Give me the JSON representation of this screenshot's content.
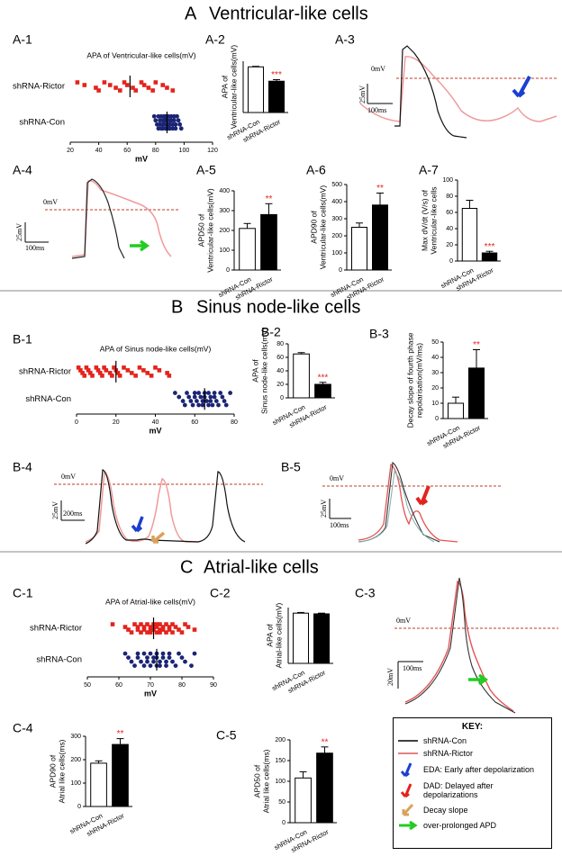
{
  "sections": [
    {
      "letter": "A",
      "title": "Ventricular-like cells"
    },
    {
      "letter": "B",
      "title": "Sinus node-like cells"
    },
    {
      "letter": "C",
      "title": "Atrial-like cells"
    }
  ],
  "chart_data": [
    {
      "type": "dot",
      "label": "A-1",
      "title": "APA of Ventricular-like cells(mV)",
      "xlabel": "mV",
      "xlim": [
        20,
        120
      ],
      "xticks": [
        20,
        40,
        60,
        80,
        100,
        120
      ],
      "series": [
        {
          "name": "shRNA-Rictor",
          "color": "#e3231c",
          "mean": 62,
          "values": [
            25,
            30,
            38,
            40,
            44,
            48,
            52,
            55,
            58,
            60,
            64,
            66,
            70,
            72,
            75,
            78,
            80,
            85,
            88,
            92
          ]
        },
        {
          "name": "shRNA-Con",
          "color": "#1b2574",
          "mean": 88,
          "values": [
            79,
            80,
            81,
            82,
            82,
            83,
            83,
            84,
            84,
            85,
            85,
            85,
            86,
            86,
            86,
            87,
            87,
            87,
            88,
            88,
            88,
            88,
            89,
            89,
            89,
            90,
            90,
            90,
            91,
            91,
            92,
            92,
            93,
            93,
            94,
            94,
            95,
            96,
            97,
            98
          ]
        }
      ]
    },
    {
      "type": "bar",
      "label": "A-2",
      "ylabel": [
        "APA of",
        "Ventricular-like cells(mV)"
      ],
      "categories": [
        "shRNA-Con",
        "shRNA-Rictor"
      ],
      "values": [
        89,
        61
      ],
      "errors": [
        1,
        3
      ],
      "colors": [
        "#ffffff",
        "#000000"
      ],
      "ylim": [
        0,
        100
      ],
      "annotation": "***",
      "annotation_color": "#e3231c"
    },
    {
      "type": "bar",
      "label": "A-5",
      "ylabel": [
        "APD50 of",
        "Ventricular-like cells(mV)"
      ],
      "categories": [
        "shRNA-Con",
        "shRNA-Rictor"
      ],
      "values": [
        210,
        280
      ],
      "errors": [
        25,
        55
      ],
      "colors": [
        "#ffffff",
        "#000000"
      ],
      "ylim": [
        0,
        400
      ],
      "yticks": [
        0,
        100,
        200,
        300,
        400
      ],
      "annotation": "**",
      "annotation_color": "#e3231c"
    },
    {
      "type": "bar",
      "label": "A-6",
      "ylabel": [
        "APD90 of",
        "Ventricular-like cells(mV)"
      ],
      "categories": [
        "shRNA-Con",
        "shRNA-Rictor"
      ],
      "values": [
        250,
        380
      ],
      "errors": [
        25,
        70
      ],
      "colors": [
        "#ffffff",
        "#000000"
      ],
      "ylim": [
        0,
        500
      ],
      "yticks": [
        0,
        100,
        200,
        300,
        400,
        500
      ],
      "annotation": "**",
      "annotation_color": "#e3231c"
    },
    {
      "type": "bar",
      "label": "A-7",
      "ylabel": [
        "Max dV/dt (V/s) of",
        "Ventricular-like cells"
      ],
      "categories": [
        "shRNA-Con",
        "shRNA-Rictor"
      ],
      "values": [
        65,
        10
      ],
      "errors": [
        10,
        2
      ],
      "colors": [
        "#ffffff",
        "#000000"
      ],
      "ylim": [
        0,
        100
      ],
      "yticks": [
        0,
        20,
        40,
        60,
        80,
        100
      ],
      "annotation": "***",
      "annotation_color": "#e3231c"
    },
    {
      "type": "dot",
      "label": "B-1",
      "title": "APA of Sinus node-like cells(mV)",
      "xlabel": "mV",
      "xlim": [
        0,
        80
      ],
      "xticks": [
        0,
        20,
        40,
        60,
        80
      ],
      "series": [
        {
          "name": "shRNA-Rictor",
          "color": "#e3231c",
          "mean": 20,
          "values": [
            1,
            2,
            3,
            4,
            5,
            6,
            7,
            8,
            10,
            11,
            12,
            13,
            14,
            15,
            17,
            18,
            19,
            20,
            21,
            22,
            24,
            26,
            28,
            30,
            32,
            34,
            36,
            38,
            40,
            42,
            46,
            47
          ]
        },
        {
          "name": "shRNA-Con",
          "color": "#1b2574",
          "mean": 65,
          "values": [
            50,
            52,
            54,
            55,
            56,
            57,
            58,
            59,
            60,
            60,
            61,
            62,
            62,
            63,
            64,
            64,
            65,
            65,
            66,
            67,
            67,
            68,
            68,
            69,
            70,
            70,
            71,
            72,
            73,
            74,
            75,
            76,
            78
          ]
        }
      ]
    },
    {
      "type": "bar",
      "label": "B-2",
      "ylabel": [
        "APA of",
        "Sinus node-like cells(mV)"
      ],
      "categories": [
        "shRNA-Con",
        "shRNA-Rictor"
      ],
      "values": [
        65,
        20
      ],
      "errors": [
        2,
        3
      ],
      "colors": [
        "#ffffff",
        "#000000"
      ],
      "ylim": [
        0,
        80
      ],
      "yticks": [
        0,
        20,
        40,
        60,
        80
      ],
      "annotation": "***",
      "annotation_color": "#e3231c"
    },
    {
      "type": "bar",
      "label": "B-3",
      "ylabel": [
        "Decay slope of fourth phase",
        "repolarisation(mV/ms)"
      ],
      "categories": [
        "shRNA-Con",
        "shRNA-Rictor"
      ],
      "values": [
        10,
        33
      ],
      "errors": [
        4,
        12
      ],
      "colors": [
        "#ffffff",
        "#000000"
      ],
      "ylim": [
        0,
        50
      ],
      "yticks": [
        0,
        10,
        20,
        30,
        40,
        50
      ],
      "annotation": "**",
      "annotation_color": "#e3231c"
    },
    {
      "type": "dot",
      "label": "C-1",
      "title": "APA of Atrial-like cells(mV)",
      "xlabel": "mV",
      "xlim": [
        50,
        90
      ],
      "xticks": [
        50,
        60,
        70,
        80,
        90
      ],
      "series": [
        {
          "name": "shRNA-Rictor",
          "color": "#e3231c",
          "mean": 71,
          "values": [
            58,
            62,
            63,
            64,
            65,
            66,
            66,
            67,
            67,
            68,
            68,
            69,
            69,
            70,
            70,
            70,
            71,
            71,
            71,
            72,
            72,
            72,
            73,
            73,
            73,
            74,
            74,
            75,
            75,
            76,
            76,
            77,
            77,
            78,
            79,
            80,
            81,
            82,
            84
          ]
        },
        {
          "name": "shRNA-Con",
          "color": "#1b2574",
          "mean": 72,
          "values": [
            62,
            63,
            64,
            65,
            66,
            66,
            67,
            68,
            68,
            69,
            69,
            70,
            70,
            71,
            71,
            72,
            72,
            72,
            73,
            73,
            74,
            74,
            75,
            75,
            76,
            76,
            77,
            78,
            79,
            80,
            81,
            83,
            84
          ]
        }
      ]
    },
    {
      "type": "bar",
      "label": "C-2",
      "ylabel": [
        "APA of",
        "Atrial-like cells(mV)"
      ],
      "categories": [
        "shRNA-Con",
        "shRNA-Rictor"
      ],
      "values": [
        72,
        71
      ],
      "errors": [
        1,
        1
      ],
      "colors": [
        "#ffffff",
        "#000000"
      ],
      "ylim": [
        0,
        80
      ]
    },
    {
      "type": "bar",
      "label": "C-4",
      "ylabel": [
        "APD90 of",
        "Atrial like cells(ms)"
      ],
      "categories": [
        "shRNA-Con",
        "shRNA-Rictor"
      ],
      "values": [
        185,
        265
      ],
      "errors": [
        10,
        25
      ],
      "colors": [
        "#ffffff",
        "#000000"
      ],
      "ylim": [
        0,
        300
      ],
      "yticks": [
        0,
        100,
        200,
        300
      ],
      "annotation": "**",
      "annotation_color": "#e3231c"
    },
    {
      "type": "bar",
      "label": "C-5",
      "ylabel": [
        "APD50 of",
        "Atrial like cells(ms)"
      ],
      "categories": [
        "shRNA-Con",
        "shRNA-Rictor"
      ],
      "values": [
        108,
        168
      ],
      "errors": [
        15,
        15
      ],
      "colors": [
        "#ffffff",
        "#000000"
      ],
      "ylim": [
        0,
        200
      ],
      "yticks": [
        0,
        50,
        100,
        150,
        200
      ],
      "annotation": "**",
      "annotation_color": "#e3231c"
    }
  ],
  "traces": [
    {
      "label": "A-3",
      "zero_label": "0mV",
      "v_scale": "25mV",
      "t_scale": "100ms"
    },
    {
      "label": "A-4",
      "zero_label": "0mV",
      "v_scale": "25mV",
      "t_scale": "100ms"
    },
    {
      "label": "B-4",
      "zero_label": "0mV",
      "v_scale": "25mV",
      "t_scale": "200ms"
    },
    {
      "label": "B-5",
      "zero_label": "0mV",
      "v_scale": "25mV",
      "t_scale": "100ms"
    },
    {
      "label": "C-3",
      "zero_label": "0mV",
      "v_scale": "20mV",
      "t_scale": "100ms"
    }
  ],
  "key": {
    "title": "KEY:",
    "items": [
      "shRNA-Con",
      "shRNA-Rictor",
      "EDA: Early after depolarization",
      "DAD: Delayed after depolarizations",
      "Decay slope",
      "over-prolonged APD"
    ]
  }
}
